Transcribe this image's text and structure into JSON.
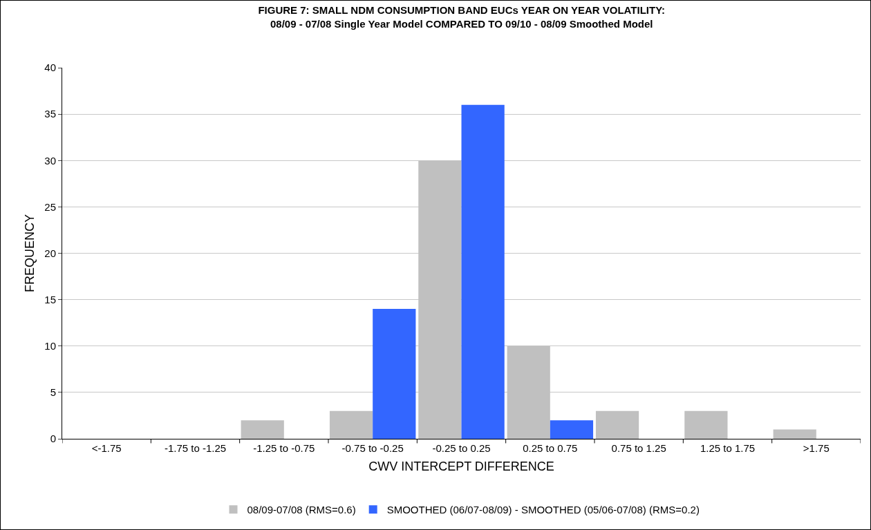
{
  "chart_data": {
    "type": "bar",
    "title": "FIGURE 7: SMALL NDM CONSUMPTION BAND EUCs YEAR ON YEAR VOLATILITY:\n08/09 - 07/08 Single Year Model COMPARED TO 09/10 - 08/09 Smoothed Model",
    "xlabel": "CWV INTERCEPT DIFFERENCE",
    "ylabel": "FREQUENCY",
    "categories": [
      "<-1.75",
      "-1.75 to -1.25",
      "-1.25 to -0.75",
      "-0.75 to -0.25",
      "-0.25 to 0.25",
      "0.25 to 0.75",
      "0.75 to 1.25",
      "1.25 to 1.75",
      ">1.75"
    ],
    "series": [
      {
        "name": "08/09-07/08 (RMS=0.6)",
        "color": "#c0c0c0",
        "values": [
          0,
          0,
          2,
          3,
          30,
          10,
          3,
          3,
          1
        ]
      },
      {
        "name": "SMOOTHED (06/07-08/09) - SMOOTHED (05/06-07/08) (RMS=0.2)",
        "color": "#3366ff",
        "values": [
          0,
          0,
          0,
          14,
          36,
          2,
          0,
          0,
          0
        ]
      }
    ],
    "ylim": [
      0,
      40
    ],
    "yticks": [
      0,
      5,
      10,
      15,
      20,
      25,
      30,
      35,
      40
    ],
    "grid": "y",
    "legend": "bottom"
  }
}
